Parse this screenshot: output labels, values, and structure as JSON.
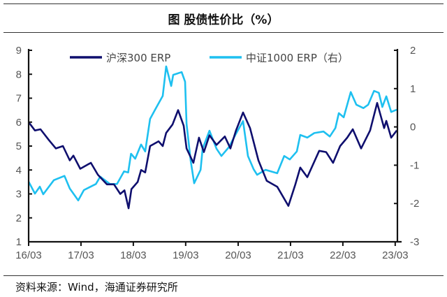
{
  "title": "图  股债性价比（%）",
  "source": "资料来源：Wind，海通证券研究所",
  "chart_data": {
    "type": "line",
    "title": "图  股债性价比（%）",
    "xlabel": "",
    "ylabel": "",
    "x_tick_labels": [
      "16/03",
      "17/03",
      "18/03",
      "19/03",
      "20/03",
      "21/03",
      "22/03",
      "23/03"
    ],
    "x_ticks": [
      "2016-03-01",
      "2017-03-01",
      "2018-03-01",
      "2019-03-01",
      "2020-03-01",
      "2021-03-01",
      "2022-03-01",
      "2023-03-01"
    ],
    "y_left": {
      "ylim": [
        1,
        9
      ],
      "ticks": [
        "1",
        "2",
        "3",
        "4",
        "5",
        "6",
        "7",
        "8",
        "9"
      ]
    },
    "y_right": {
      "ylim": [
        -3,
        2
      ],
      "ticks": [
        "-3",
        "-2",
        "-1",
        "0",
        "1",
        "2"
      ]
    },
    "grid": false,
    "legend_placement": "top",
    "series": [
      {
        "name": "沪深300 ERP",
        "axis": "left",
        "color": "#0f0f6e",
        "points": [
          [
            "2016-03-01",
            6.0
          ],
          [
            "2016-04-14",
            5.65
          ],
          [
            "2016-05-23",
            5.7
          ],
          [
            "2016-07-20",
            5.25
          ],
          [
            "2016-09-07",
            4.9
          ],
          [
            "2016-10-26",
            5.0
          ],
          [
            "2016-12-13",
            4.4
          ],
          [
            "2017-01-07",
            4.6
          ],
          [
            "2017-02-24",
            4.05
          ],
          [
            "2017-05-09",
            4.3
          ],
          [
            "2017-06-27",
            3.8
          ],
          [
            "2017-08-29",
            3.4
          ],
          [
            "2017-10-17",
            3.4
          ],
          [
            "2017-11-30",
            3.0
          ],
          [
            "2017-12-29",
            3.15
          ],
          [
            "2018-01-27",
            2.4
          ],
          [
            "2018-02-16",
            3.2
          ],
          [
            "2018-03-31",
            3.5
          ],
          [
            "2018-04-24",
            4.0
          ],
          [
            "2018-05-23",
            3.9
          ],
          [
            "2018-06-26",
            5.0
          ],
          [
            "2018-08-24",
            5.2
          ],
          [
            "2018-09-22",
            5.0
          ],
          [
            "2018-10-16",
            5.55
          ],
          [
            "2018-11-29",
            5.9
          ],
          [
            "2019-01-07",
            6.5
          ],
          [
            "2019-02-15",
            5.85
          ],
          [
            "2019-03-07",
            4.9
          ],
          [
            "2019-04-24",
            4.3
          ],
          [
            "2019-06-02",
            5.35
          ],
          [
            "2019-07-06",
            4.75
          ],
          [
            "2019-08-14",
            5.45
          ],
          [
            "2019-10-02",
            5.05
          ],
          [
            "2019-11-29",
            5.4
          ],
          [
            "2020-01-07",
            4.9
          ],
          [
            "2020-02-15",
            5.65
          ],
          [
            "2020-04-04",
            6.4
          ],
          [
            "2020-05-23",
            5.75
          ],
          [
            "2020-07-20",
            4.4
          ],
          [
            "2020-09-16",
            3.55
          ],
          [
            "2020-11-28",
            3.3
          ],
          [
            "2021-02-14",
            2.5
          ],
          [
            "2021-04-04",
            3.4
          ],
          [
            "2021-05-08",
            4.1
          ],
          [
            "2021-06-26",
            3.7
          ],
          [
            "2021-09-17",
            4.8
          ],
          [
            "2021-11-04",
            4.75
          ],
          [
            "2021-12-23",
            4.3
          ],
          [
            "2022-02-10",
            5.0
          ],
          [
            "2022-03-31",
            5.35
          ],
          [
            "2022-05-09",
            5.7
          ],
          [
            "2022-07-06",
            4.9
          ],
          [
            "2022-09-07",
            5.65
          ],
          [
            "2022-10-26",
            6.8
          ],
          [
            "2022-12-14",
            5.75
          ],
          [
            "2022-12-29",
            6.05
          ],
          [
            "2023-02-01",
            5.35
          ],
          [
            "2023-03-12",
            5.65
          ]
        ]
      },
      {
        "name": "中证1000 ERP（右）",
        "axis": "right",
        "color": "#1ec0f0",
        "points": [
          [
            "2016-03-01",
            -1.43
          ],
          [
            "2016-04-14",
            -1.74
          ],
          [
            "2016-05-18",
            -1.56
          ],
          [
            "2016-06-11",
            -1.76
          ],
          [
            "2016-08-24",
            -1.39
          ],
          [
            "2016-11-06",
            -1.28
          ],
          [
            "2016-12-13",
            -1.61
          ],
          [
            "2017-02-10",
            -1.92
          ],
          [
            "2017-03-21",
            -1.65
          ],
          [
            "2017-06-13",
            -1.49
          ],
          [
            "2017-07-13",
            -1.3
          ],
          [
            "2017-09-19",
            -1.49
          ],
          [
            "2017-11-07",
            -1.49
          ],
          [
            "2017-12-26",
            -1.16
          ],
          [
            "2018-01-24",
            -1.19
          ],
          [
            "2018-02-13",
            -0.7
          ],
          [
            "2018-03-14",
            -0.83
          ],
          [
            "2018-04-24",
            -0.46
          ],
          [
            "2018-05-23",
            -0.64
          ],
          [
            "2018-06-26",
            0.21
          ],
          [
            "2018-07-31",
            0.45
          ],
          [
            "2018-09-22",
            0.81
          ],
          [
            "2018-10-16",
            1.58
          ],
          [
            "2018-11-20",
            1.07
          ],
          [
            "2018-12-04",
            1.36
          ],
          [
            "2019-02-01",
            1.43
          ],
          [
            "2019-02-25",
            1.18
          ],
          [
            "2019-03-07",
            0.08
          ],
          [
            "2019-04-05",
            -0.88
          ],
          [
            "2019-04-29",
            -1.47
          ],
          [
            "2019-06-13",
            -1.12
          ],
          [
            "2019-06-27",
            -0.57
          ],
          [
            "2019-08-14",
            -0.1
          ],
          [
            "2019-10-02",
            -0.57
          ],
          [
            "2019-11-05",
            -0.76
          ],
          [
            "2019-12-29",
            -0.52
          ],
          [
            "2020-02-10",
            -0.21
          ],
          [
            "2020-04-04",
            0.15
          ],
          [
            "2020-05-08",
            -0.76
          ],
          [
            "2020-06-16",
            -1.1
          ],
          [
            "2020-07-11",
            -1.25
          ],
          [
            "2020-09-08",
            -1.12
          ],
          [
            "2020-11-28",
            -1.21
          ],
          [
            "2021-01-16",
            -0.76
          ],
          [
            "2021-02-24",
            -0.85
          ],
          [
            "2021-04-14",
            -0.64
          ],
          [
            "2021-05-08",
            -0.21
          ],
          [
            "2021-06-26",
            -0.28
          ],
          [
            "2021-08-14",
            -0.16
          ],
          [
            "2021-10-17",
            -0.12
          ],
          [
            "2021-11-30",
            -0.25
          ],
          [
            "2022-01-08",
            -0.03
          ],
          [
            "2022-02-01",
            0.36
          ],
          [
            "2022-03-07",
            0.25
          ],
          [
            "2022-04-25",
            0.91
          ],
          [
            "2022-06-03",
            0.58
          ],
          [
            "2022-07-22",
            0.49
          ],
          [
            "2022-08-25",
            0.58
          ],
          [
            "2022-10-04",
            0.94
          ],
          [
            "2022-11-07",
            0.89
          ],
          [
            "2022-12-01",
            0.52
          ],
          [
            "2022-12-29",
            0.8
          ],
          [
            "2023-02-01",
            0.39
          ],
          [
            "2023-03-12",
            0.45
          ]
        ]
      }
    ]
  }
}
